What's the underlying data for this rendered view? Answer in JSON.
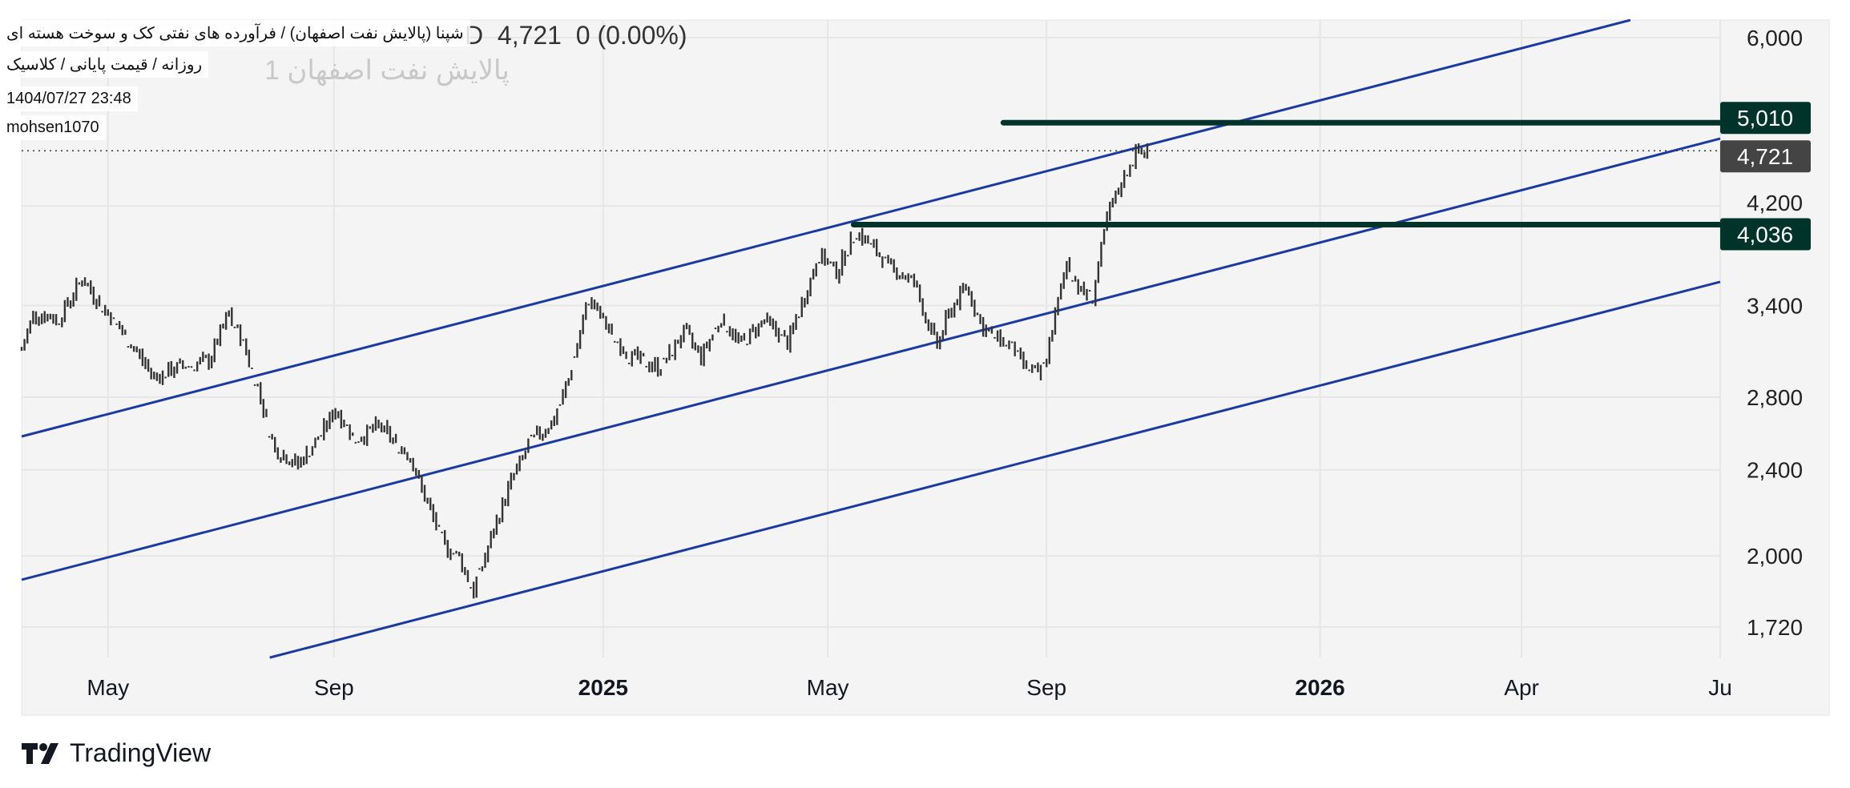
{
  "header": {
    "title": "شپنا (پالایش نفت اصفهان) / فرآورده های نفتی کک و سوخت هسته ای",
    "subtitle": "روزانه / قیمت پایانی / کلاسیک",
    "datetime": "1404/07/27 23:48",
    "author": "mohsen1070",
    "watermark": "پالایش نفت اصفهان 1",
    "interval": "D",
    "last_price": "4,721",
    "change": "0 (0.00%)"
  },
  "branding": {
    "logo_text": "TradingView"
  },
  "colors": {
    "channel": "#1a3aa0",
    "level": "#00332a",
    "last": "#444444",
    "bars": "#333333",
    "panel": "#f4f4f4"
  },
  "chart_data": {
    "type": "ohlc-bar",
    "scale": "log",
    "ylim": [
      1650,
      6150
    ],
    "xlim": [
      0,
      590
    ],
    "x_unit": "bar index",
    "y_ticks": [
      6000,
      4200,
      3400,
      2800,
      2400,
      2000,
      1720
    ],
    "y_tick_labels": [
      "6,000",
      "4,200",
      "3,400",
      "2,800",
      "2,400",
      "2,000",
      "1,720"
    ],
    "x_ticks": [
      {
        "x": 30,
        "label": "May",
        "bold": false
      },
      {
        "x": 108.5,
        "label": "Sep",
        "bold": false
      },
      {
        "x": 202,
        "label": "2025",
        "bold": true
      },
      {
        "x": 280,
        "label": "May",
        "bold": false
      },
      {
        "x": 356,
        "label": "Sep",
        "bold": false
      },
      {
        "x": 451,
        "label": "2026",
        "bold": true
      },
      {
        "x": 521,
        "label": "Apr",
        "bold": false
      },
      {
        "x": 590,
        "label": "Ju",
        "bold": false
      }
    ],
    "close_keypoints": [
      [
        0,
        3094
      ],
      [
        4,
        3339
      ],
      [
        13,
        3310
      ],
      [
        21,
        3600
      ],
      [
        30,
        3339
      ],
      [
        38,
        3136
      ],
      [
        46,
        2921
      ],
      [
        54,
        2980
      ],
      [
        65,
        3021
      ],
      [
        72,
        3339
      ],
      [
        77,
        3136
      ],
      [
        81,
        2921
      ],
      [
        88,
        2503
      ],
      [
        96,
        2427
      ],
      [
        103,
        2562
      ],
      [
        109,
        2728
      ],
      [
        116,
        2562
      ],
      [
        124,
        2632
      ],
      [
        135,
        2469
      ],
      [
        140,
        2262
      ],
      [
        147,
        2046
      ],
      [
        152,
        1993
      ],
      [
        157,
        1850
      ],
      [
        163,
        2073
      ],
      [
        170,
        2346
      ],
      [
        177,
        2549
      ],
      [
        185,
        2666
      ],
      [
        190,
        2906
      ],
      [
        197,
        3450
      ],
      [
        203,
        3255
      ],
      [
        211,
        3057
      ],
      [
        222,
        2980
      ],
      [
        230,
        3215
      ],
      [
        236,
        3057
      ],
      [
        243,
        3310
      ],
      [
        250,
        3136
      ],
      [
        258,
        3300
      ],
      [
        266,
        3136
      ],
      [
        272,
        3467
      ],
      [
        277,
        3786
      ],
      [
        283,
        3651
      ],
      [
        290,
        3979
      ],
      [
        296,
        3833
      ],
      [
        302,
        3680
      ],
      [
        310,
        3575
      ],
      [
        314,
        3310
      ],
      [
        318,
        3120
      ],
      [
        322,
        3339
      ],
      [
        328,
        3550
      ],
      [
        334,
        3230
      ],
      [
        343,
        3136
      ],
      [
        347,
        3021
      ],
      [
        354,
        2921
      ],
      [
        357,
        3136
      ],
      [
        363,
        3735
      ],
      [
        368,
        3500
      ],
      [
        372,
        3467
      ],
      [
        377,
        4083
      ],
      [
        383,
        4481
      ],
      [
        387,
        4691
      ],
      [
        391,
        4721
      ]
    ],
    "channel_lines": [
      {
        "name": "upper",
        "from": [
          0,
          2576
        ],
        "to": [
          558.8,
          6228
        ]
      },
      {
        "name": "middle",
        "from": [
          0,
          1901
        ],
        "to": [
          590,
          4844
        ]
      },
      {
        "name": "lower",
        "from": [
          86.2,
          1612
        ],
        "to": [
          590,
          3575
        ]
      }
    ],
    "horizontal_levels": [
      {
        "price": 5010,
        "label": "5,010",
        "from_x": 341
      },
      {
        "price": 4036,
        "label": "4,036",
        "from_x": 289
      }
    ],
    "last_price": {
      "price": 4721,
      "label": "4,721"
    }
  }
}
